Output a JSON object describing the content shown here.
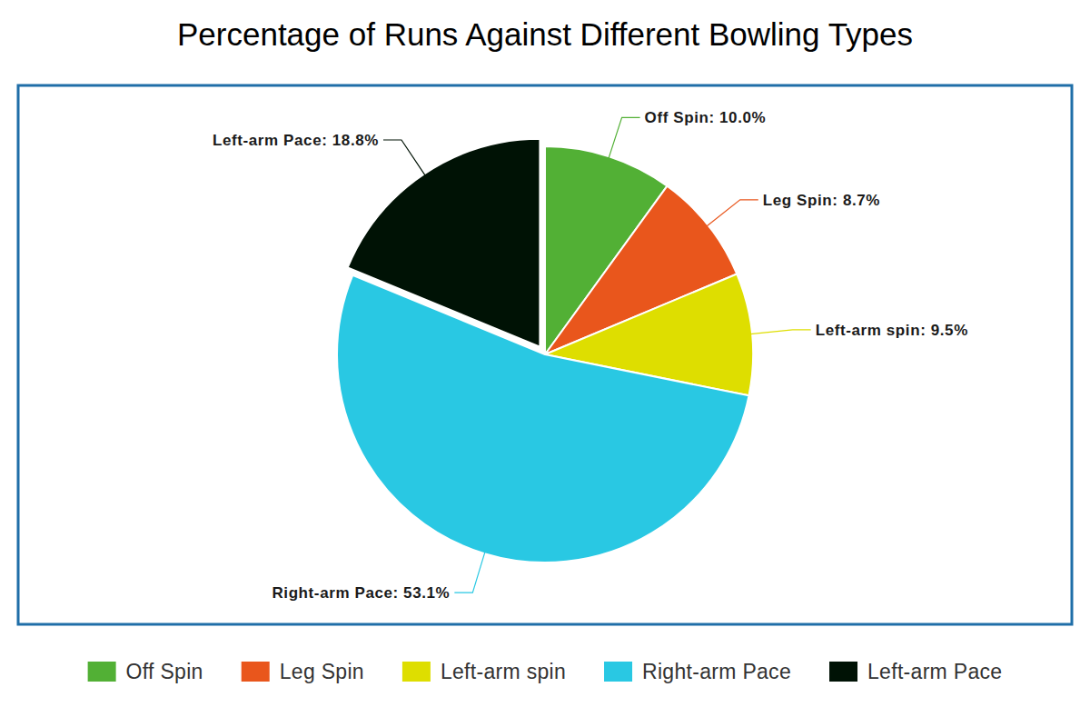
{
  "chart_data": {
    "type": "pie",
    "title": "Percentage of Runs Against Different Bowling Types",
    "categories": [
      "Off Spin",
      "Leg Spin",
      "Left-arm spin",
      "Right-arm Pace",
      "Left-arm Pace"
    ],
    "values": [
      10.0,
      8.7,
      9.5,
      53.1,
      18.8
    ],
    "value_labels": [
      "Off Spin: 10.0%",
      "Leg Spin: 8.7%",
      "Left-arm spin: 9.5%",
      "Right-arm Pace: 53.1%",
      "Left-arm Pace: 18.8%"
    ],
    "colors": [
      "#52b035",
      "#e9561c",
      "#dede00",
      "#29c8e3",
      "#001205"
    ],
    "data_labels": true,
    "legend": "bottom"
  }
}
